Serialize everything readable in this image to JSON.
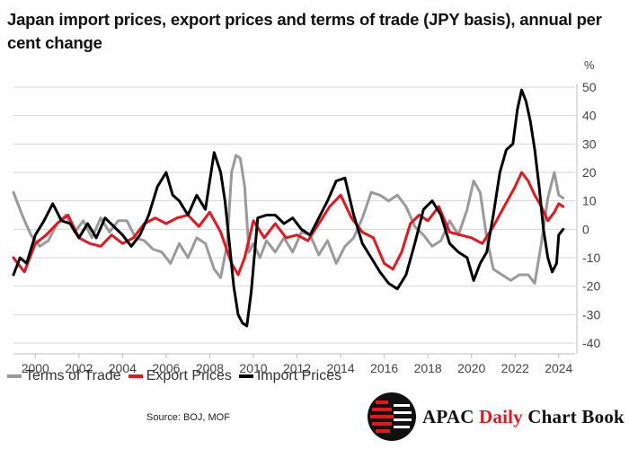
{
  "title": "Japan import prices, export prices and terms of trade (JPY basis), annual per cent change",
  "source": "Source: BOJ, MOF",
  "brand": {
    "part1": "APAC ",
    "part2": "Daily",
    "part3": " Chart Book"
  },
  "colors": {
    "terms": "#9a9a9a",
    "export": "#e8141e",
    "import": "#000000",
    "grid": "#d6d6d6",
    "accent": "#e8141e"
  },
  "chart_data": {
    "type": "line",
    "title": "Japan import prices, export prices and terms of trade (JPY basis), annual per cent change",
    "xlabel": "",
    "ylabel": "%",
    "ylim": [
      -40,
      50
    ],
    "xlim": [
      1999.0,
      2024.75
    ],
    "yticks": [
      50,
      40,
      30,
      20,
      10,
      0,
      -10,
      -20,
      -30,
      -40
    ],
    "xticks": [
      2000,
      2002,
      2004,
      2006,
      2008,
      2010,
      2012,
      2014,
      2016,
      2018,
      2020,
      2022,
      2024
    ],
    "grid": "horizontal",
    "legend_position": "bottom-left",
    "series": [
      {
        "name": "Terms of Trade",
        "color": "#9a9a9a",
        "x": [
          1999.0,
          1999.4,
          1999.8,
          2000.2,
          2000.6,
          2001.0,
          2001.4,
          2001.8,
          2002.2,
          2002.6,
          2003.0,
          2003.4,
          2003.8,
          2004.2,
          2004.6,
          2005.0,
          2005.4,
          2005.8,
          2006.2,
          2006.6,
          2007.0,
          2007.4,
          2007.8,
          2008.2,
          2008.5,
          2008.8,
          2009.0,
          2009.2,
          2009.4,
          2009.6,
          2009.8,
          2010.0,
          2010.3,
          2010.6,
          2011.0,
          2011.4,
          2011.8,
          2012.2,
          2012.6,
          2013.0,
          2013.4,
          2013.8,
          2014.2,
          2014.6,
          2015.0,
          2015.4,
          2015.8,
          2016.2,
          2016.6,
          2017.0,
          2017.4,
          2017.8,
          2018.2,
          2018.6,
          2019.0,
          2019.4,
          2019.8,
          2020.1,
          2020.4,
          2020.7,
          2021.0,
          2021.4,
          2021.8,
          2022.2,
          2022.6,
          2022.9,
          2023.2,
          2023.5,
          2023.8,
          2024.0,
          2024.2
        ],
        "values": [
          13,
          5,
          -2,
          -6,
          -4,
          2,
          5,
          -1,
          3,
          -3,
          4,
          -1,
          3,
          3,
          -3,
          -4,
          -7,
          -8,
          -12,
          -5,
          -10,
          -3,
          -5,
          -14,
          -17,
          -5,
          20,
          26,
          25,
          15,
          -8,
          -5,
          -10,
          -4,
          -8,
          -3,
          -8,
          -1,
          -2,
          -9,
          -4,
          -12,
          -6,
          -3,
          4,
          13,
          12,
          10,
          12,
          8,
          1,
          -2,
          -6,
          -4,
          3,
          -2,
          7,
          17,
          13,
          -3,
          -14,
          -16,
          -18,
          -16,
          -16,
          -19,
          -5,
          11,
          20,
          12,
          11
        ]
      },
      {
        "name": "Export Prices",
        "color": "#e8141e",
        "x": [
          1999.0,
          1999.5,
          2000.0,
          2000.5,
          2001.0,
          2001.5,
          2002.0,
          2002.5,
          2003.0,
          2003.5,
          2004.0,
          2004.5,
          2005.0,
          2005.5,
          2006.0,
          2006.5,
          2007.0,
          2007.5,
          2008.0,
          2008.5,
          2009.0,
          2009.3,
          2009.6,
          2010.0,
          2010.5,
          2011.0,
          2011.5,
          2012.0,
          2012.5,
          2013.0,
          2013.5,
          2014.0,
          2014.5,
          2015.0,
          2015.5,
          2016.0,
          2016.4,
          2016.8,
          2017.2,
          2017.6,
          2018.0,
          2018.5,
          2019.0,
          2019.5,
          2020.0,
          2020.5,
          2021.0,
          2021.5,
          2022.0,
          2022.3,
          2022.6,
          2022.9,
          2023.2,
          2023.5,
          2023.8,
          2024.0,
          2024.2
        ],
        "values": [
          -10,
          -15,
          -5,
          -2,
          2,
          5,
          -3,
          -5,
          -6,
          -2,
          -5,
          -3,
          2,
          4,
          2,
          4,
          5,
          1,
          6,
          -1,
          -12,
          -16,
          -10,
          3,
          -3,
          2,
          -3,
          -2,
          -4,
          2,
          8,
          12,
          4,
          -1,
          -3,
          -12,
          -14,
          -8,
          2,
          5,
          3,
          8,
          -1,
          -2,
          -3,
          -5,
          1,
          8,
          15,
          20,
          17,
          12,
          8,
          3,
          6,
          9,
          8
        ]
      },
      {
        "name": "Import Prices",
        "color": "#000000",
        "x": [
          1999.0,
          1999.3,
          1999.6,
          2000.0,
          2000.4,
          2000.8,
          2001.2,
          2001.6,
          2002.0,
          2002.4,
          2002.8,
          2003.2,
          2003.6,
          2004.0,
          2004.4,
          2004.8,
          2005.2,
          2005.6,
          2006.0,
          2006.3,
          2006.6,
          2007.0,
          2007.4,
          2007.8,
          2008.2,
          2008.5,
          2008.7,
          2008.9,
          2009.1,
          2009.3,
          2009.5,
          2009.7,
          2009.9,
          2010.2,
          2010.6,
          2011.0,
          2011.4,
          2011.8,
          2012.2,
          2012.6,
          2013.0,
          2013.4,
          2013.8,
          2014.2,
          2014.6,
          2015.0,
          2015.4,
          2015.8,
          2016.2,
          2016.6,
          2017.0,
          2017.4,
          2017.8,
          2018.2,
          2018.6,
          2019.0,
          2019.4,
          2019.8,
          2020.1,
          2020.4,
          2020.7,
          2021.0,
          2021.3,
          2021.6,
          2021.9,
          2022.1,
          2022.3,
          2022.5,
          2022.7,
          2022.9,
          2023.1,
          2023.3,
          2023.5,
          2023.7,
          2023.9,
          2024.0,
          2024.2
        ],
        "values": [
          -16,
          -10,
          -12,
          -2,
          3,
          9,
          3,
          2,
          -3,
          2,
          -3,
          4,
          1,
          -2,
          -6,
          -2,
          5,
          15,
          20,
          12,
          10,
          5,
          12,
          7,
          27,
          20,
          10,
          -5,
          -20,
          -30,
          -33,
          -34,
          -22,
          4,
          5,
          5,
          2,
          4,
          0,
          -2,
          4,
          10,
          17,
          18,
          5,
          -5,
          -10,
          -15,
          -19,
          -21,
          -16,
          -5,
          7,
          10,
          5,
          -5,
          -8,
          -10,
          -18,
          -12,
          -8,
          5,
          20,
          28,
          30,
          42,
          49,
          45,
          38,
          28,
          15,
          0,
          -10,
          -15,
          -12,
          -2,
          0
        ]
      }
    ]
  }
}
